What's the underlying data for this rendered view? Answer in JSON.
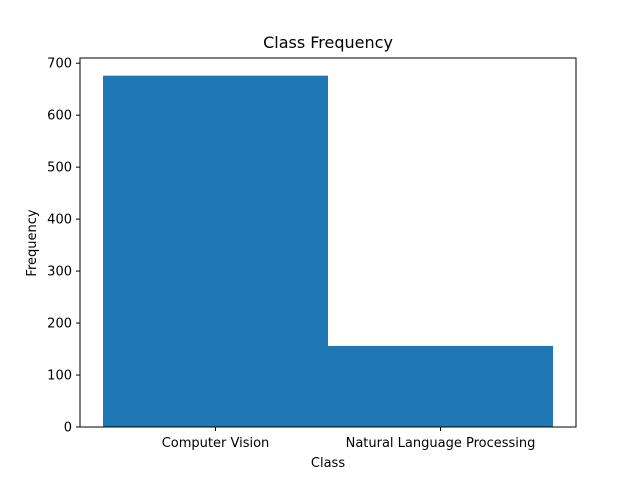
{
  "chart_data": {
    "type": "bar",
    "title": "Class Frequency",
    "xlabel": "Class",
    "ylabel": "Frequency",
    "categories": [
      "Computer Vision",
      "Natural Language Processing"
    ],
    "values": [
      676,
      156
    ],
    "ylim": [
      0,
      710
    ],
    "yticks": [
      0,
      100,
      200,
      300,
      400,
      500,
      600,
      700
    ],
    "grid": false,
    "bar_color": "#1f77b4"
  }
}
